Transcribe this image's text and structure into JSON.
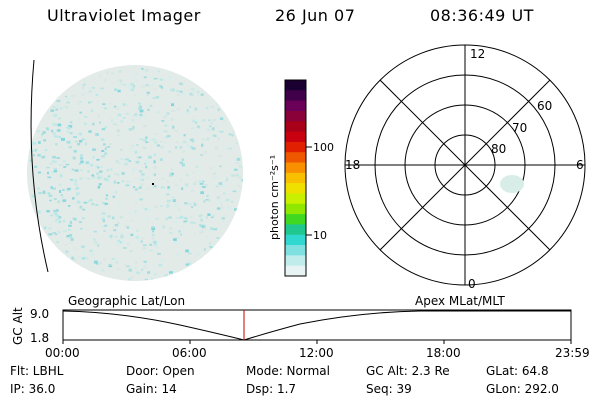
{
  "header": {
    "title": "Ultraviolet Imager",
    "date": "26 Jun 07",
    "time": "08:36:49 UT"
  },
  "colorbar": {
    "unit_label": "photon cm⁻²s⁻¹",
    "ticks": [
      "100",
      "10"
    ],
    "colors": [
      "#1a0030",
      "#40004a",
      "#6a0058",
      "#8a0038",
      "#a80018",
      "#c80010",
      "#e02000",
      "#f05800",
      "#f89000",
      "#f8c000",
      "#f0e000",
      "#c8f000",
      "#90e800",
      "#40d820",
      "#20c890",
      "#30d8d0",
      "#80e0e0",
      "#c0ecec",
      "#e8f4f4"
    ]
  },
  "polar_plot": {
    "mlt_labels": [
      "12",
      "6",
      "0",
      "18"
    ],
    "lat_labels": [
      "60",
      "70",
      "80"
    ]
  },
  "timeline": {
    "left_title": "Geographic Lat/Lon",
    "right_title": "Apex MLat/MLT",
    "y_axis_label": "GC Alt",
    "y_ticks": [
      "9.0",
      "1.8"
    ],
    "x_ticks": [
      "00:00",
      "06:00",
      "12:00",
      "18:00",
      "23:59"
    ],
    "current_time_color": "#c00000"
  },
  "info": {
    "row1": {
      "filter": "Flt: LBHL",
      "door": "Door: Open",
      "mode": "Mode: Normal",
      "gc_alt": "GC Alt: 2.3 Re",
      "glat": "GLat:  64.8"
    },
    "row2": {
      "ip": "IP: 36.0",
      "gain": "Gain: 14",
      "dsp": "Dsp:    1.7",
      "seq": "Seq: 39",
      "glon": "GLon: 292.0"
    }
  }
}
